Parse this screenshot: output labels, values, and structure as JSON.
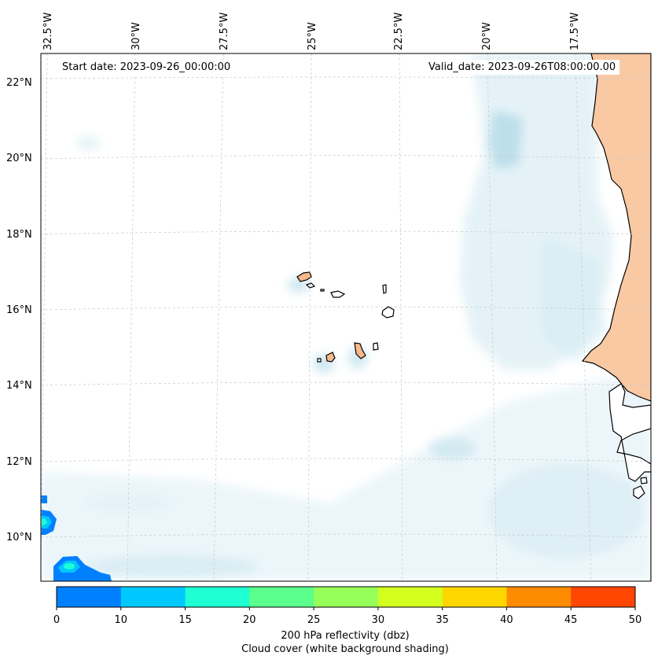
{
  "map": {
    "start_date": "Start date: 2023-09-26_00:00:00",
    "valid_date": "Valid_date: 2023-09-26T08:00:00.00",
    "lon_labels": [
      "32.5°W",
      "30°W",
      "27.5°W",
      "25°W",
      "22.5°W",
      "20°W",
      "17.5°W"
    ],
    "lat_labels": [
      "22°N",
      "20°N",
      "18°N",
      "16°N",
      "14°N",
      "12°N",
      "10°N"
    ],
    "land_color": "#f9c9a3",
    "cloud_color": "#d2eaf2"
  },
  "colorbar": {
    "ticks": [
      "0",
      "10",
      "15",
      "20",
      "25",
      "30",
      "35",
      "40",
      "45",
      "50"
    ],
    "colors": [
      "#0080ff",
      "#00c8ff",
      "#1effd2",
      "#5aff8c",
      "#96ff5a",
      "#d2ff1e",
      "#ffd700",
      "#ff8c00",
      "#ff4600"
    ],
    "label": "200 hPa reflectivity (dbz)",
    "sublabel": "Cloud cover (white background shading)"
  }
}
